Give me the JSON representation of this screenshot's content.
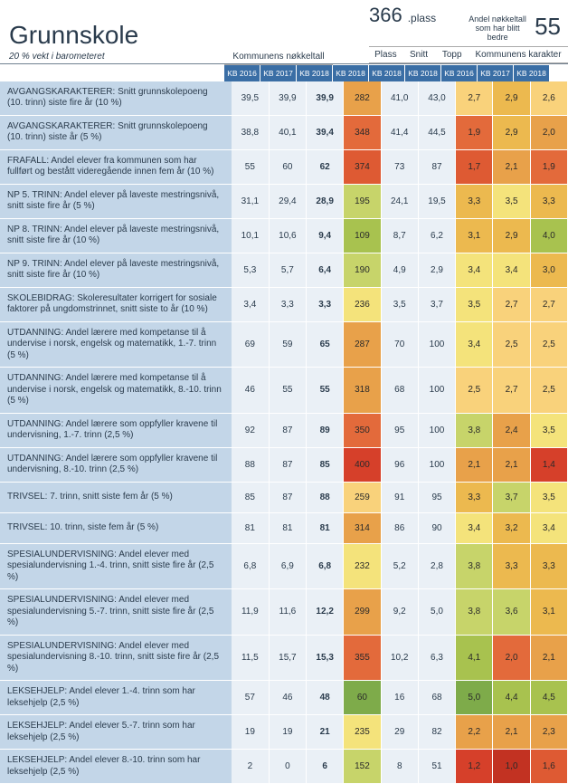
{
  "header": {
    "title": "Grunnskole",
    "subtitle": "20 % vekt i barometeret",
    "plass_value": "366",
    "plass_label": ".plass",
    "right_label": "Andel nøkkeltall som har blitt bedre",
    "right_value": "55"
  },
  "col_groups": {
    "nokk": "Kommunens nøkkeltall",
    "plass": "Plass",
    "snitt": "Snitt",
    "topp": "Topp",
    "karakter": "Kommunens karakter"
  },
  "years": [
    "KB 2016",
    "KB 2017",
    "KB 2018",
    "KB 2018",
    "KB 2018",
    "KB 2018",
    "KB 2016",
    "KB 2017",
    "KB 2018"
  ],
  "rows": [
    {
      "label": "AVGANGSKARAKTERER: Snitt grunnskolepoeng (10. trinn) siste fire år (10 %)",
      "n": [
        "39,5",
        "39,9",
        "39,9"
      ],
      "plass": "282",
      "snitt": "41,0",
      "topp": "43,0",
      "k": [
        "2,7",
        "2,9",
        "2,6"
      ],
      "kcols": [
        "#f9d27b",
        "#ecb94f",
        "#f9d27b"
      ],
      "pcol": "#e8a14a"
    },
    {
      "label": "AVGANGSKARAKTERER: Snitt grunnskolepoeng (10. trinn) siste år (5 %)",
      "n": [
        "38,8",
        "40,1",
        "39,4"
      ],
      "plass": "348",
      "snitt": "41,4",
      "topp": "44,5",
      "k": [
        "1,9",
        "2,9",
        "2,0"
      ],
      "kcols": [
        "#e36a3b",
        "#ecb94f",
        "#e8a14a"
      ],
      "pcol": "#e36a3b"
    },
    {
      "label": "FRAFALL: Andel elever fra kommunen som har fullført og bestått videregående innen fem år (10 %)",
      "n": [
        "55",
        "60",
        "62"
      ],
      "plass": "374",
      "snitt": "73",
      "topp": "87",
      "k": [
        "1,7",
        "2,1",
        "1,9"
      ],
      "kcols": [
        "#de5a33",
        "#e8a14a",
        "#e36a3b"
      ],
      "pcol": "#de5a33"
    },
    {
      "label": "NP 5. TRINN: Andel elever på laveste mestringsnivå, snitt siste fire år (5 %)",
      "n": [
        "31,1",
        "29,4",
        "28,9"
      ],
      "plass": "195",
      "snitt": "24,1",
      "topp": "19,5",
      "k": [
        "3,3",
        "3,5",
        "3,3"
      ],
      "kcols": [
        "#ecb94f",
        "#f4e37b",
        "#ecb94f"
      ],
      "pcol": "#c7d46a"
    },
    {
      "label": "NP 8. TRINN: Andel elever på laveste mestringsnivå, snitt siste fire år (10 %)",
      "n": [
        "10,1",
        "10,6",
        "9,4"
      ],
      "plass": "109",
      "snitt": "8,7",
      "topp": "6,2",
      "k": [
        "3,1",
        "2,9",
        "4,0"
      ],
      "kcols": [
        "#ecb94f",
        "#ecb94f",
        "#a8c24f"
      ],
      "pcol": "#a8c24f"
    },
    {
      "label": "NP 9. TRINN: Andel elever på laveste mestringsnivå, snitt siste fire år (10 %)",
      "n": [
        "5,3",
        "5,7",
        "6,4"
      ],
      "plass": "190",
      "snitt": "4,9",
      "topp": "2,9",
      "k": [
        "3,4",
        "3,4",
        "3,0"
      ],
      "kcols": [
        "#f4e37b",
        "#f4e37b",
        "#ecb94f"
      ],
      "pcol": "#c7d46a"
    },
    {
      "label": "SKOLEBIDRAG: Skoleresultater korrigert for sosiale faktorer på ungdomstrinnet, snitt siste to år (10 %)",
      "n": [
        "3,4",
        "3,3",
        "3,3"
      ],
      "plass": "236",
      "snitt": "3,5",
      "topp": "3,7",
      "k": [
        "3,5",
        "2,7",
        "2,7"
      ],
      "kcols": [
        "#f4e37b",
        "#f9d27b",
        "#f9d27b"
      ],
      "pcol": "#f4e37b"
    },
    {
      "label": "UTDANNING: Andel lærere med kompetanse til å undervise i norsk, engelsk og matematikk, 1.-7. trinn (5 %)",
      "n": [
        "69",
        "59",
        "65"
      ],
      "plass": "287",
      "snitt": "70",
      "topp": "100",
      "k": [
        "3,4",
        "2,5",
        "2,5"
      ],
      "kcols": [
        "#f4e37b",
        "#f9d27b",
        "#f9d27b"
      ],
      "pcol": "#e8a14a"
    },
    {
      "label": "UTDANNING: Andel lærere med kompetanse til å undervise i norsk, engelsk og matematikk, 8.-10. trinn (5 %)",
      "n": [
        "46",
        "55",
        "55"
      ],
      "plass": "318",
      "snitt": "68",
      "topp": "100",
      "k": [
        "2,5",
        "2,7",
        "2,5"
      ],
      "kcols": [
        "#f9d27b",
        "#f9d27b",
        "#f9d27b"
      ],
      "pcol": "#e8a14a"
    },
    {
      "label": "UTDANNING: Andel lærere som oppfyller kravene til undervisning, 1.-7. trinn (2,5 %)",
      "n": [
        "92",
        "87",
        "89"
      ],
      "plass": "350",
      "snitt": "95",
      "topp": "100",
      "k": [
        "3,8",
        "2,4",
        "3,5"
      ],
      "kcols": [
        "#c7d46a",
        "#e8a14a",
        "#f4e37b"
      ],
      "pcol": "#e36a3b"
    },
    {
      "label": "UTDANNING: Andel lærere som oppfyller kravene til undervisning, 8.-10. trinn (2,5 %)",
      "n": [
        "88",
        "87",
        "85"
      ],
      "plass": "400",
      "snitt": "96",
      "topp": "100",
      "k": [
        "2,1",
        "2,1",
        "1,4"
      ],
      "kcols": [
        "#e8a14a",
        "#e8a14a",
        "#d6402a"
      ],
      "pcol": "#d6402a"
    },
    {
      "label": "TRIVSEL: 7. trinn, snitt siste fem år (5 %)",
      "n": [
        "85",
        "87",
        "88"
      ],
      "plass": "259",
      "snitt": "91",
      "topp": "95",
      "k": [
        "3,3",
        "3,7",
        "3,5"
      ],
      "kcols": [
        "#ecb94f",
        "#c7d46a",
        "#f4e37b"
      ],
      "pcol": "#f9d27b"
    },
    {
      "label": "TRIVSEL: 10. trinn, siste fem år (5 %)",
      "n": [
        "81",
        "81",
        "81"
      ],
      "plass": "314",
      "snitt": "86",
      "topp": "90",
      "k": [
        "3,4",
        "3,2",
        "3,4"
      ],
      "kcols": [
        "#f4e37b",
        "#ecb94f",
        "#f4e37b"
      ],
      "pcol": "#e8a14a"
    },
    {
      "label": "SPESIALUNDERVISNING: Andel elever med spesialundervisning 1.-4. trinn, snitt siste fire år (2,5 %)",
      "n": [
        "6,8",
        "6,9",
        "6,8"
      ],
      "plass": "232",
      "snitt": "5,2",
      "topp": "2,8",
      "k": [
        "3,8",
        "3,3",
        "3,3"
      ],
      "kcols": [
        "#c7d46a",
        "#ecb94f",
        "#ecb94f"
      ],
      "pcol": "#f4e37b"
    },
    {
      "label": "SPESIALUNDERVISNING: Andel elever med spesialundervisning 5.-7. trinn, snitt siste fire år (2,5 %)",
      "n": [
        "11,9",
        "11,6",
        "12,2"
      ],
      "plass": "299",
      "snitt": "9,2",
      "topp": "5,0",
      "k": [
        "3,8",
        "3,6",
        "3,1"
      ],
      "kcols": [
        "#c7d46a",
        "#c7d46a",
        "#ecb94f"
      ],
      "pcol": "#e8a14a"
    },
    {
      "label": "SPESIALUNDERVISNING: Andel elever med spesialundervisning 8.-10. trinn, snitt siste fire år (2,5 %)",
      "n": [
        "11,5",
        "15,7",
        "15,3"
      ],
      "plass": "355",
      "snitt": "10,2",
      "topp": "6,3",
      "k": [
        "4,1",
        "2,0",
        "2,1"
      ],
      "kcols": [
        "#a8c24f",
        "#e36a3b",
        "#e8a14a"
      ],
      "pcol": "#e36a3b"
    },
    {
      "label": "LEKSEHJELP: Andel elever 1.-4. trinn som har leksehjelp (2,5 %)",
      "n": [
        "57",
        "46",
        "48"
      ],
      "plass": "60",
      "snitt": "16",
      "topp": "68",
      "k": [
        "5,0",
        "4,4",
        "4,5"
      ],
      "kcols": [
        "#7eab4a",
        "#a8c24f",
        "#a8c24f"
      ],
      "pcol": "#7eab4a"
    },
    {
      "label": "LEKSEHJELP: Andel elever 5.-7. trinn som har leksehjelp (2,5 %)",
      "n": [
        "19",
        "19",
        "21"
      ],
      "plass": "235",
      "snitt": "29",
      "topp": "82",
      "k": [
        "2,2",
        "2,1",
        "2,3"
      ],
      "kcols": [
        "#e8a14a",
        "#e8a14a",
        "#e8a14a"
      ],
      "pcol": "#f4e37b"
    },
    {
      "label": "LEKSEHJELP: Andel elever 8.-10. trinn som har leksehjelp (2,5 %)",
      "n": [
        "2",
        "0",
        "6"
      ],
      "plass": "152",
      "snitt": "8",
      "topp": "51",
      "k": [
        "1,2",
        "1,0",
        "1,6"
      ],
      "kcols": [
        "#d6402a",
        "#c23222",
        "#de5a33"
      ],
      "pcol": "#c7d46a"
    }
  ],
  "neutral_bg": "#eaf0f6",
  "row_label_bg": "#c3d6e8"
}
